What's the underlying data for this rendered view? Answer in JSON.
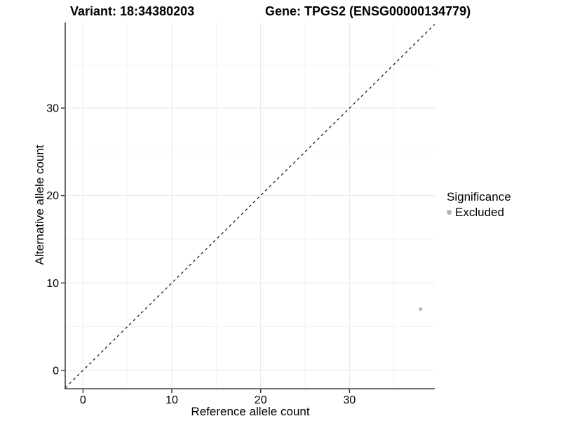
{
  "chart_data": {
    "type": "scatter",
    "titles": {
      "left": "Variant: 18:34380203",
      "right": "Gene: TPGS2 (ENSG00000134779)"
    },
    "xlabel": "Reference allele count",
    "ylabel": "Alternative allele count",
    "xlim": [
      -2.0,
      39.6
    ],
    "ylim": [
      -2.1,
      39.8
    ],
    "x_ticks": [
      0,
      10,
      20,
      30
    ],
    "y_ticks": [
      0,
      10,
      20,
      30
    ],
    "x_minor_ticks": [
      5,
      15,
      25,
      35
    ],
    "y_minor_ticks": [
      5,
      15,
      25,
      35
    ],
    "grid": "major+minor",
    "identity_line": {
      "type": "abline",
      "slope": 1,
      "intercept": 0,
      "style": "dashed",
      "color": "#111111"
    },
    "series": [
      {
        "name": "Excluded",
        "color": "#b3b3b3",
        "marker": "circle",
        "points": [
          [
            38,
            7
          ]
        ]
      }
    ],
    "legend": {
      "title": "Significance",
      "position": "right",
      "entries": [
        {
          "label": "Excluded",
          "color": "#b3b3b3"
        }
      ]
    }
  },
  "colors": {
    "background": "#ffffff",
    "axis_line": "#444444",
    "grid_major": "#e8e8e8",
    "grid_minor": "#f3f3f3",
    "tick": "#333333",
    "text": "#000000"
  }
}
